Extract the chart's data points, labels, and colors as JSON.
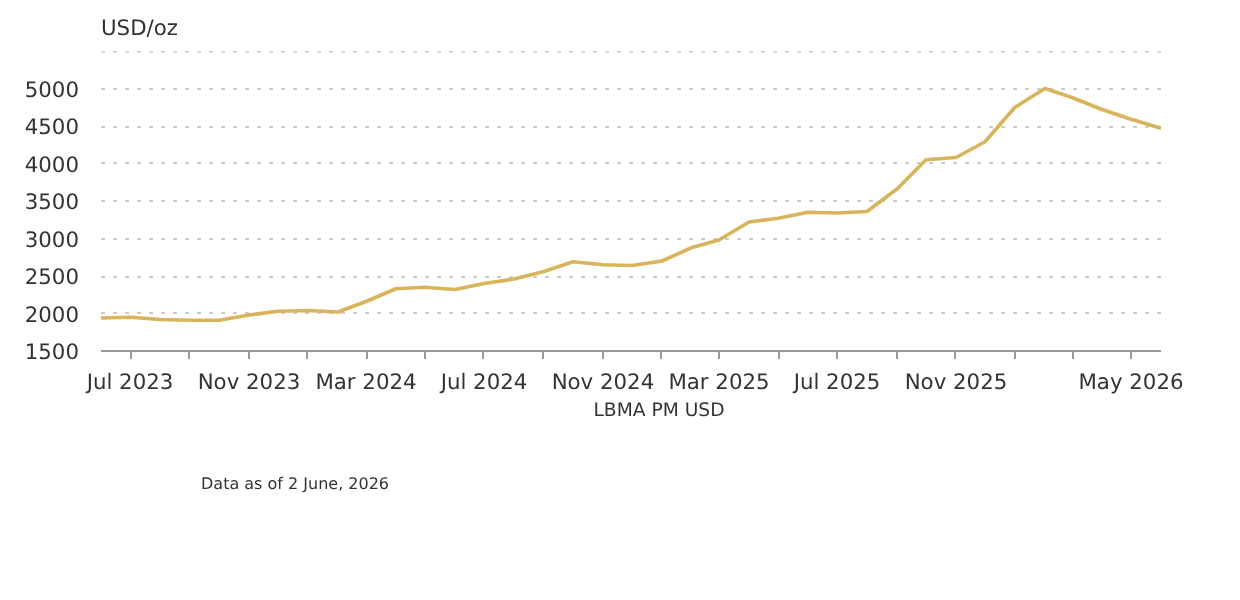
{
  "chart_data": {
    "type": "line",
    "ylabel": "USD/oz",
    "x": [
      "2023-06",
      "2023-07",
      "2023-08",
      "2023-09",
      "2023-10",
      "2023-11",
      "2023-12",
      "2024-01",
      "2024-02",
      "2024-03",
      "2024-04",
      "2024-05",
      "2024-06",
      "2024-07",
      "2024-08",
      "2024-09",
      "2024-10",
      "2024-11",
      "2024-12",
      "2025-01",
      "2025-02",
      "2025-03",
      "2025-04",
      "2025-05",
      "2025-06",
      "2025-07",
      "2025-08",
      "2025-09",
      "2025-10",
      "2025-11",
      "2025-12",
      "2026-01",
      "2026-02",
      "2026-03",
      "2026-04",
      "2026-05",
      "2026-06"
    ],
    "series": [
      {
        "name": "LBMA PM USD",
        "color": "#d9b45a",
        "values": [
          1940,
          1950,
          1920,
          1910,
          1910,
          1980,
          2030,
          2040,
          2020,
          2160,
          2330,
          2350,
          2320,
          2400,
          2460,
          2560,
          2690,
          2650,
          2640,
          2700,
          2880,
          2980,
          3220,
          3270,
          3350,
          3340,
          3360,
          3660,
          4050,
          4080,
          4290,
          4750,
          5000,
          4880,
          4720,
          4590,
          4470
        ]
      }
    ],
    "xlim": [
      "2023-06",
      "2026-06"
    ],
    "xticks": [
      {
        "value": "2023-07",
        "label": "Jul 2023"
      },
      {
        "value": "2023-09",
        "label": null
      },
      {
        "value": "2023-11",
        "label": "Nov 2023"
      },
      {
        "value": "2024-01",
        "label": null
      },
      {
        "value": "2024-03",
        "label": "Mar 2024"
      },
      {
        "value": "2024-05",
        "label": null
      },
      {
        "value": "2024-07",
        "label": "Jul 2024"
      },
      {
        "value": "2024-09",
        "label": null
      },
      {
        "value": "2024-11",
        "label": "Nov 2024"
      },
      {
        "value": "2025-01",
        "label": null
      },
      {
        "value": "2025-03",
        "label": "Mar 2025"
      },
      {
        "value": "2025-05",
        "label": null
      },
      {
        "value": "2025-07",
        "label": "Jul 2025"
      },
      {
        "value": "2025-09",
        "label": null
      },
      {
        "value": "2025-11",
        "label": "Nov 2025"
      },
      {
        "value": "2026-01",
        "label": null
      },
      {
        "value": "2026-03",
        "label": null
      },
      {
        "value": "2026-05",
        "label": "May 2026"
      }
    ],
    "ylim": [
      1500,
      5500
    ],
    "yticks": [
      1500,
      2000,
      2500,
      3000,
      3500,
      4000,
      4500,
      5000,
      {
        "value": 5500,
        "label": null
      }
    ],
    "grid": "y",
    "legend": "bottom",
    "marker": "none",
    "line_style": "solid",
    "annotations": [
      "Data as of 2 June, 2026"
    ]
  }
}
